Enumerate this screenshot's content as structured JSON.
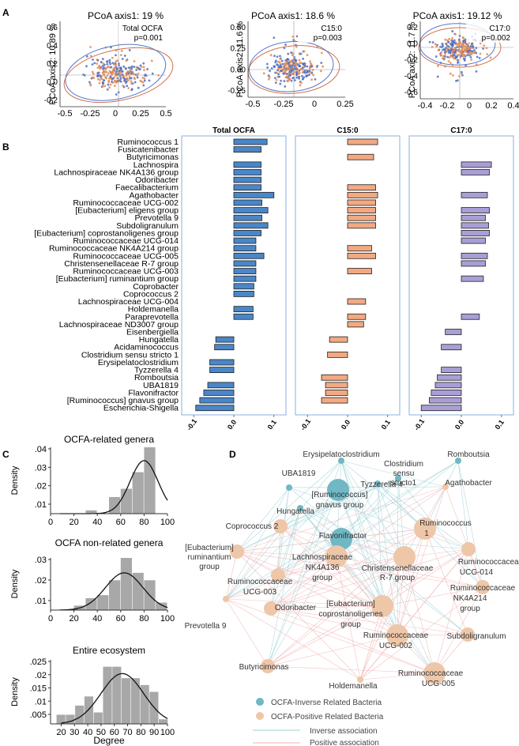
{
  "panels": {
    "A": "A",
    "B": "B",
    "C": "C",
    "D": "D"
  },
  "pcoa": [
    {
      "title": "PCoA axis1:  19 %",
      "ylabel": "PCoA axis2:  10.89 %",
      "annot": "Total OCFA",
      "p": "p=0.001",
      "xticks": [
        "-0.5",
        "-0.25",
        "0",
        "0.25",
        "0.5"
      ],
      "yticks": [
        "0.6",
        "0.4",
        "0.2",
        "0.0",
        "-0.2"
      ]
    },
    {
      "title": "PCoA axis1:  18.6 %",
      "ylabel": "PCoA axis2:  11.6 %",
      "annot": "C15:0",
      "p": "p=0.003",
      "xticks": [
        "-0.5",
        "-0.25",
        "0",
        "0.25"
      ],
      "yticks": [
        "0.50",
        "0.25",
        "0.00",
        "-0.25"
      ]
    },
    {
      "title": "PCoA axis1:  19.12 %",
      "ylabel": "PCoA axis2:  11.7 %",
      "annot": "C17:0",
      "p": "p=0.002",
      "xticks": [
        "-0.4",
        "-0.2",
        "0",
        "0.2",
        "0.4"
      ],
      "yticks": [
        "0.2",
        "0.0",
        "-0.2",
        "-0.4",
        "-0.6"
      ]
    }
  ],
  "genera": {
    "panel_titles": [
      "Total OCFA",
      "C15:0",
      "C17:0"
    ],
    "xticks": [
      "-0.1",
      "0.0",
      "0.1"
    ],
    "labels": [
      "Ruminococcus 1",
      "Fusicatenibacter",
      "Butyricimonas",
      "Lachnospira",
      "Lachnospiraceae NK4A136 group",
      "Odoribacter",
      "Faecalibacterium",
      "Agathobacter",
      "Ruminococcaceae UCG-002",
      "[Eubacterium] eligens group",
      "Prevotella 9",
      "Subdoligranulum",
      "[Eubacterium] coprostanoligenes group",
      "Ruminococcaceae UCG-014",
      "Ruminococcaceae NK4A214 group",
      "Ruminococcaceae UCG-005",
      "Christensenellaceae R-7 group",
      "Ruminococcaceae UCG-003",
      "[Eubacterium] ruminantium group",
      "Coprobacter",
      "Coprococcus 2",
      "Lachnospiraceae UCG-004",
      "Holdemanella",
      "Paraprevotella",
      "Lachnospiraceae ND3007 group",
      "Eisenbergiella",
      "Hungatella",
      "Acidaminococcus",
      "Clostridium sensu stricto 1",
      "Erysipelatoclostridium",
      "Tyzzerella 4",
      "Romboutsia",
      "UBA1819",
      "Flavonifractor",
      "[Ruminococcus] gnavus group",
      "Escherichia-Shigella"
    ]
  },
  "chart_data": [
    {
      "type": "bar",
      "title": "Total OCFA",
      "orientation": "horizontal",
      "xlim": [
        -0.13,
        0.13
      ],
      "categories_ref": "genera.labels",
      "values": [
        0.083,
        0.068,
        0,
        0.068,
        0.068,
        0.068,
        0.068,
        0.1,
        0.07,
        0.085,
        0.07,
        0.085,
        0.068,
        0.055,
        0.055,
        0.075,
        0.055,
        0.055,
        0.055,
        0.05,
        0.05,
        0,
        0.048,
        0.048,
        0,
        0,
        -0.045,
        -0.048,
        0,
        -0.06,
        -0.06,
        0,
        -0.065,
        -0.075,
        -0.085,
        -0.095
      ],
      "color": "#4a86c8"
    },
    {
      "type": "bar",
      "title": "C15:0",
      "orientation": "horizontal",
      "xlim": [
        -0.13,
        0.13
      ],
      "categories_ref": "genera.labels",
      "values": [
        0.075,
        0,
        0.065,
        0,
        0,
        0,
        0.07,
        0.075,
        0.07,
        0.07,
        0.07,
        0.07,
        0,
        0,
        0.06,
        0.07,
        0,
        0.06,
        0,
        0,
        0,
        0.045,
        0,
        0.045,
        0.04,
        0,
        -0.045,
        0,
        -0.05,
        0,
        0,
        -0.065,
        -0.055,
        -0.055,
        -0.065,
        0
      ],
      "color": "#f2a982"
    },
    {
      "type": "bar",
      "title": "C17:0",
      "orientation": "horizontal",
      "xlim": [
        -0.13,
        0.13
      ],
      "categories_ref": "genera.labels",
      "values": [
        0,
        0,
        0,
        0.075,
        0.07,
        0,
        0,
        0.065,
        0,
        0.07,
        0.06,
        0.068,
        0.07,
        0.06,
        0,
        0.065,
        0.06,
        0,
        0.055,
        0,
        0,
        0,
        0,
        0.045,
        0,
        -0.04,
        0,
        -0.05,
        0,
        0,
        -0.05,
        -0.06,
        -0.065,
        -0.075,
        -0.08,
        -0.1
      ],
      "color": "#a99ed6"
    },
    {
      "type": "bar",
      "title": "OCFA-related genera",
      "ylabel": "Density",
      "x": [
        25,
        35,
        45,
        55,
        65,
        75,
        85,
        95
      ],
      "values": [
        0,
        0.002,
        0,
        0.01,
        0.015,
        0.025,
        0.04,
        0
      ],
      "ylim": [
        0,
        0.04
      ],
      "yticks": [
        ".04",
        ".03",
        ".02",
        ".01"
      ],
      "xticks": [
        "0",
        "20",
        "40",
        "60",
        "80",
        "100"
      ]
    },
    {
      "type": "bar",
      "title": "OCFA non-related genera",
      "ylabel": "Density",
      "x": [
        25,
        35,
        45,
        55,
        65,
        75,
        85,
        95
      ],
      "values": [
        0.003,
        0.008,
        0.01,
        0.02,
        0.035,
        0.025,
        0.02,
        0.005
      ],
      "ylim": [
        0,
        0.035
      ],
      "yticks": [
        ".03",
        ".02",
        ".01"
      ],
      "xticks": [
        "0",
        "20",
        "40",
        "60",
        "80",
        "100"
      ]
    },
    {
      "type": "bar",
      "title": "Entire ecosystem",
      "ylabel": "Density",
      "xlabel": "Degree",
      "x": [
        20,
        27,
        34,
        41,
        48,
        55,
        62,
        69,
        76,
        83,
        90,
        97
      ],
      "values": [
        0.004,
        0.004,
        0.008,
        0.012,
        0.005,
        0.025,
        0.025,
        0.02,
        0.02,
        0.017,
        0.014,
        0.002
      ],
      "ylim": [
        0,
        0.028
      ],
      "yticks": [
        ".025",
        ".02",
        ".015",
        ".01",
        ".005"
      ],
      "xticks": [
        "20",
        "30",
        "40",
        "50",
        "60",
        "70",
        "80",
        "90",
        "100"
      ]
    }
  ],
  "network": {
    "legend": [
      "OCFA-Inverse Related Bacteria",
      "OCFA-Positive Related Bacteria",
      "Inverse association",
      "Positive association"
    ],
    "colors": {
      "inverse": "#6fb8c4",
      "positive": "#eec6a8",
      "inverse_line": "#9fd0d6",
      "positive_line": "#f2b1b1"
    },
    "nodes": [
      {
        "label": "Erysipelatoclostridium",
        "kind": "inverse",
        "size": "small"
      },
      {
        "label": "Romboutsia",
        "kind": "inverse",
        "size": "small"
      },
      {
        "label": "Clostridium sensu stricto1",
        "kind": "inverse",
        "size": "small"
      },
      {
        "label": "UBA1819",
        "kind": "inverse",
        "size": "small"
      },
      {
        "label": "Tyzzerella 4",
        "kind": "inverse",
        "size": "small"
      },
      {
        "label": "Agathobacter",
        "kind": "positive",
        "size": "small"
      },
      {
        "label": "[Ruminococcus] gnavus group",
        "kind": "inverse",
        "size": "large"
      },
      {
        "label": "Hungatella",
        "kind": "inverse",
        "size": "small"
      },
      {
        "label": "Coprococcus 2",
        "kind": "positive",
        "size": "medium"
      },
      {
        "label": "Flavonifractor",
        "kind": "inverse",
        "size": "large"
      },
      {
        "label": "Ruminococcus 1",
        "kind": "positive",
        "size": "large"
      },
      {
        "label": "[Eubacterium] ruminantium group",
        "kind": "positive",
        "size": "medium"
      },
      {
        "label": "Lachnospiraceae NK4A136 group",
        "kind": "positive",
        "size": "large"
      },
      {
        "label": "Christensenellaceae R-7 group",
        "kind": "positive",
        "size": "large"
      },
      {
        "label": "Ruminococcaceae UCG-014",
        "kind": "positive",
        "size": "medium"
      },
      {
        "label": "Ruminococcaceae UCG-003",
        "kind": "positive",
        "size": "medium"
      },
      {
        "label": "Ruminococcaceae NK4A214 group",
        "kind": "positive",
        "size": "medium"
      },
      {
        "label": "Odoribacter",
        "kind": "positive",
        "size": "medium"
      },
      {
        "label": "[Eubacterium] coprostanoligenes group",
        "kind": "positive",
        "size": "large"
      },
      {
        "label": "Prevotella 9",
        "kind": "positive",
        "size": "small"
      },
      {
        "label": "Ruminococcaceae UCG-002",
        "kind": "positive",
        "size": "large"
      },
      {
        "label": "Subdoligranulum",
        "kind": "positive",
        "size": "medium"
      },
      {
        "label": "Butyricimonas",
        "kind": "positive",
        "size": "medium"
      },
      {
        "label": "Holdemanella",
        "kind": "positive",
        "size": "small"
      },
      {
        "label": "Ruminococcaceae UCG-005",
        "kind": "positive",
        "size": "large"
      }
    ]
  }
}
